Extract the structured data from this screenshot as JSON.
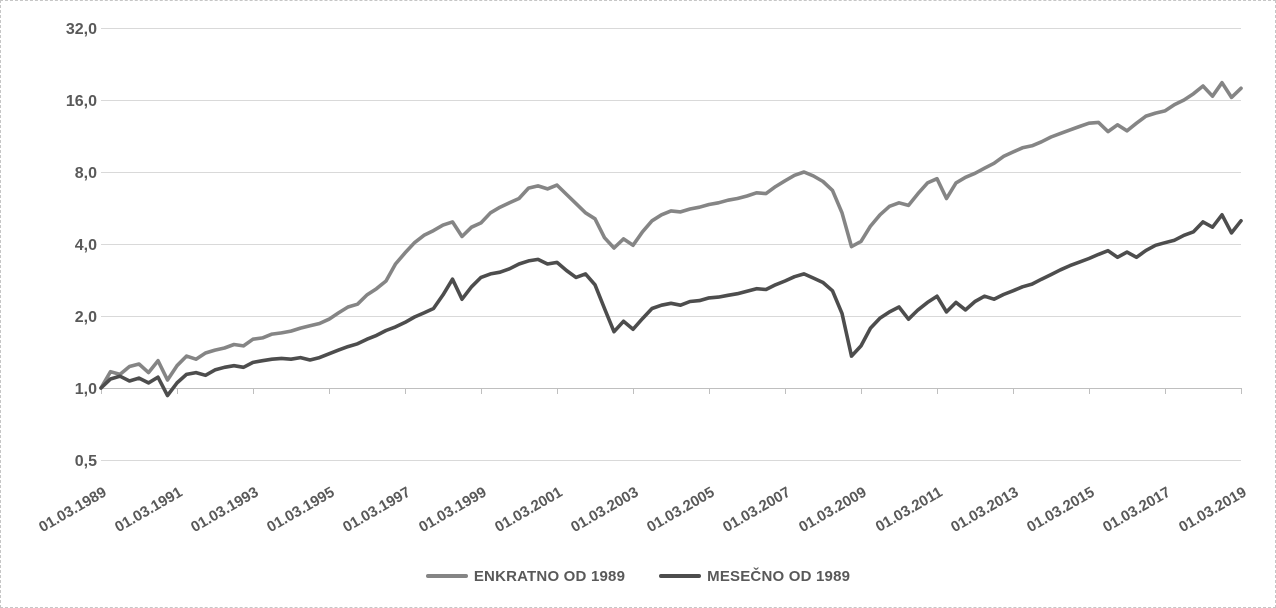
{
  "chart_data": {
    "type": "line",
    "title": "",
    "grid": true,
    "legend_position": "bottom",
    "y_axis": {
      "scale": "log2",
      "range": [
        0.5,
        32
      ],
      "ticks": [
        {
          "label": "32,0",
          "value": 32
        },
        {
          "label": "16,0",
          "value": 16
        },
        {
          "label": "8,0",
          "value": 8
        },
        {
          "label": "4,0",
          "value": 4
        },
        {
          "label": "2,0",
          "value": 2
        },
        {
          "label": "1,0",
          "value": 1
        },
        {
          "label": "0,5",
          "value": 0.5
        }
      ]
    },
    "x_axis": {
      "start_label": "01.03.1989",
      "end_label": "01.03.2019",
      "tick_interval_years": 2,
      "tick_labels": [
        "01.03.1989",
        "01.03.1991",
        "01.03.1993",
        "01.03.1995",
        "01.03.1997",
        "01.03.1999",
        "01.03.2001",
        "01.03.2003",
        "01.03.2005",
        "01.03.2007",
        "01.03.2009",
        "01.03.2011",
        "01.03.2013",
        "01.03.2015",
        "01.03.2017",
        "01.03.2019"
      ]
    },
    "sample_step_years": 0.25,
    "series": [
      {
        "name": "ENKRATNO OD 1989",
        "color": "#858585",
        "values": [
          1.0,
          1.17,
          1.14,
          1.23,
          1.26,
          1.16,
          1.3,
          1.08,
          1.24,
          1.36,
          1.32,
          1.4,
          1.44,
          1.47,
          1.52,
          1.5,
          1.6,
          1.62,
          1.68,
          1.7,
          1.73,
          1.78,
          1.82,
          1.86,
          1.94,
          2.06,
          2.18,
          2.24,
          2.45,
          2.6,
          2.8,
          3.3,
          3.67,
          4.05,
          4.35,
          4.55,
          4.8,
          4.95,
          4.3,
          4.7,
          4.9,
          5.4,
          5.7,
          5.95,
          6.2,
          6.85,
          7.0,
          6.8,
          7.05,
          6.45,
          5.9,
          5.4,
          5.1,
          4.25,
          3.85,
          4.2,
          3.95,
          4.5,
          5.0,
          5.3,
          5.5,
          5.45,
          5.6,
          5.7,
          5.85,
          5.95,
          6.1,
          6.2,
          6.35,
          6.55,
          6.5,
          6.95,
          7.35,
          7.75,
          8.0,
          7.7,
          7.3,
          6.7,
          5.4,
          3.9,
          4.1,
          4.75,
          5.3,
          5.75,
          5.95,
          5.8,
          6.5,
          7.2,
          7.5,
          6.2,
          7.2,
          7.6,
          7.9,
          8.3,
          8.7,
          9.3,
          9.7,
          10.1,
          10.3,
          10.7,
          11.2,
          11.6,
          12.0,
          12.4,
          12.8,
          12.9,
          11.8,
          12.6,
          11.9,
          12.8,
          13.7,
          14.1,
          14.4,
          15.3,
          16.0,
          17.0,
          18.3,
          16.6,
          18.9,
          16.4,
          17.9
        ]
      },
      {
        "name": "MESEČNO OD 1989",
        "color": "#4d4d4d",
        "values": [
          1.0,
          1.09,
          1.12,
          1.07,
          1.1,
          1.05,
          1.11,
          0.93,
          1.05,
          1.14,
          1.16,
          1.13,
          1.19,
          1.22,
          1.24,
          1.22,
          1.28,
          1.3,
          1.32,
          1.33,
          1.32,
          1.34,
          1.31,
          1.34,
          1.39,
          1.44,
          1.49,
          1.53,
          1.6,
          1.66,
          1.74,
          1.8,
          1.88,
          1.98,
          2.06,
          2.15,
          2.45,
          2.85,
          2.35,
          2.65,
          2.9,
          3.0,
          3.05,
          3.15,
          3.3,
          3.4,
          3.45,
          3.3,
          3.35,
          3.1,
          2.9,
          3.0,
          2.7,
          2.15,
          1.72,
          1.9,
          1.76,
          1.95,
          2.15,
          2.22,
          2.26,
          2.22,
          2.3,
          2.32,
          2.38,
          2.4,
          2.44,
          2.48,
          2.54,
          2.6,
          2.58,
          2.7,
          2.8,
          2.92,
          3.0,
          2.88,
          2.76,
          2.55,
          2.05,
          1.36,
          1.5,
          1.78,
          1.96,
          2.08,
          2.18,
          1.94,
          2.12,
          2.28,
          2.42,
          2.08,
          2.28,
          2.12,
          2.3,
          2.42,
          2.35,
          2.46,
          2.55,
          2.65,
          2.72,
          2.85,
          2.98,
          3.12,
          3.25,
          3.36,
          3.48,
          3.62,
          3.75,
          3.52,
          3.7,
          3.52,
          3.76,
          3.95,
          4.05,
          4.15,
          4.35,
          4.5,
          4.95,
          4.7,
          5.3,
          4.45,
          5.0
        ]
      }
    ]
  },
  "colors": {
    "grid_line": "#d9d9d9",
    "axis_line": "#bfbfbf",
    "tick_label": "#595959",
    "background": "#ffffff",
    "frame_border": "#c6c6c6"
  },
  "legend": {
    "items": [
      {
        "label": "ENKRATNO OD 1989"
      },
      {
        "label": "MESEČNO OD 1989"
      }
    ]
  }
}
